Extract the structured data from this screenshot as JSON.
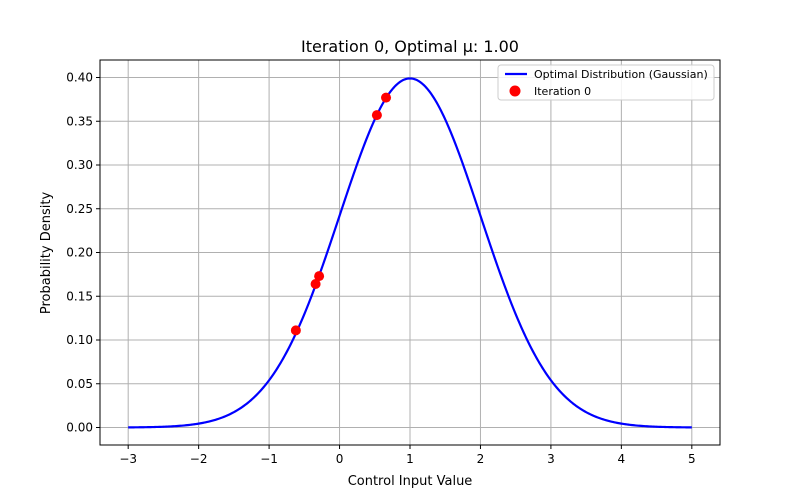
{
  "chart_data": {
    "type": "line",
    "title": "Iteration 0, Optimal μ: 1.00",
    "xlabel": "Control Input Value",
    "ylabel": "Probability Density",
    "xlim": [
      -3.4,
      5.4
    ],
    "ylim": [
      -0.02,
      0.42
    ],
    "grid": true,
    "legend_position": "top-right",
    "xticks": [
      -3,
      -2,
      -1,
      0,
      1,
      2,
      3,
      4,
      5
    ],
    "yticks": [
      0.0,
      0.05,
      0.1,
      0.15,
      0.2,
      0.25,
      0.3,
      0.35,
      0.4
    ],
    "xtick_labels": [
      "−3",
      "−2",
      "−1",
      "0",
      "1",
      "2",
      "3",
      "4",
      "5"
    ],
    "ytick_labels": [
      "0.00",
      "0.05",
      "0.10",
      "0.15",
      "0.20",
      "0.25",
      "0.30",
      "0.35",
      "0.40"
    ],
    "curve": {
      "name": "Optimal Distribution (Gaussian)",
      "color": "#0000ff",
      "distribution": "normal",
      "mean": 1.0,
      "std": 1.0,
      "x_range": [
        -3,
        5
      ]
    },
    "scatter": {
      "name": "Iteration 0",
      "color": "#ff0000",
      "points": [
        {
          "x": -0.62,
          "y": 0.111
        },
        {
          "x": -0.34,
          "y": 0.164
        },
        {
          "x": -0.29,
          "y": 0.173
        },
        {
          "x": 0.53,
          "y": 0.357
        },
        {
          "x": 0.66,
          "y": 0.377
        }
      ]
    }
  }
}
